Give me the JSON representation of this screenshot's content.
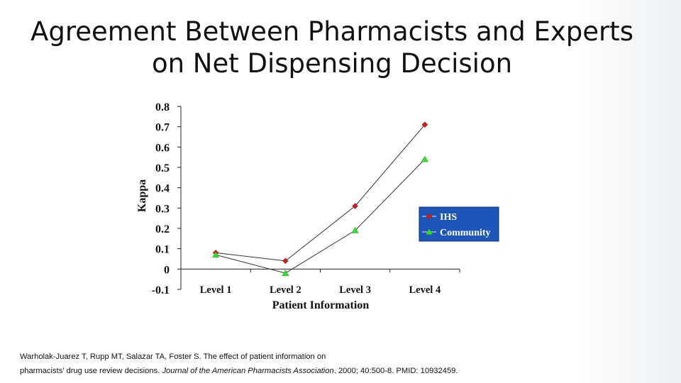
{
  "slide": {
    "title_line1": "Agreement Between Pharmacists and Experts",
    "title_line2": "on Net Dispensing Decision",
    "citation_line1": "Warholak-Juarez T, Rupp MT, Salazar TA, Foster S.  The effect of patient information on",
    "citation_line2_a": "pharmacists’ drug use review decisions.  ",
    "citation_line2_journal": "Journal of the American Pharmacists Association",
    "citation_line2_b": ". 2000; 40:500-8. PMID: 10932459."
  },
  "colors": {
    "ihs_marker": "#cc1f1f",
    "community_marker": "#33dd33",
    "line": "#333333",
    "legend_bg": "#1d56b8",
    "legend_text": "#ffffff"
  },
  "chart_data": {
    "type": "line",
    "title": "",
    "xlabel": "Patient Information",
    "ylabel": "Kappa",
    "categories": [
      "Level 1",
      "Level 2",
      "Level 3",
      "Level 4"
    ],
    "ylim": [
      -0.1,
      0.8
    ],
    "yticks": [
      "0.8",
      "0.7",
      "0.6",
      "0.5",
      "0.4",
      "0.3",
      "0.2",
      "0.1",
      "0",
      "-0.1"
    ],
    "legend_position": "right",
    "series": [
      {
        "name": "IHS",
        "marker": "diamond",
        "values": [
          0.08,
          0.04,
          0.31,
          0.71
        ]
      },
      {
        "name": "Community",
        "marker": "triangle",
        "values": [
          0.07,
          -0.02,
          0.19,
          0.54
        ]
      }
    ]
  }
}
